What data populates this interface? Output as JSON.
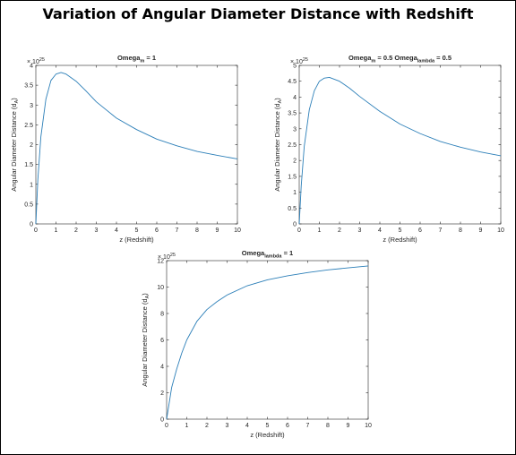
{
  "figure": {
    "title": "Variation of Angular Diameter Distance with Redshift"
  },
  "colors": {
    "line": "#2c7fb8",
    "axis": "#262626",
    "background": "#ffffff"
  },
  "chart_data": [
    {
      "type": "line",
      "title_base": "Omega",
      "title_sub": "m",
      "title_rest": " = 1",
      "xlabel": "z (Redshift)",
      "ylabel_base": "Angular Diameter Distance (d",
      "ylabel_sub": "A",
      "ylabel_end": ")",
      "exponent_base": "× 10",
      "exponent_power": "25",
      "xlim": [
        0,
        10
      ],
      "ylim": [
        0,
        4
      ],
      "xticks": [
        0,
        1,
        2,
        3,
        4,
        5,
        6,
        7,
        8,
        9,
        10
      ],
      "yticks": [
        0,
        0.5,
        1,
        1.5,
        2,
        2.5,
        3,
        3.5,
        4
      ],
      "ytick_labels": [
        "0",
        "0.5",
        "1",
        "1.5",
        "2",
        "2.5",
        "3",
        "3.5",
        "4"
      ],
      "grid": false,
      "series": [
        {
          "x": [
            0,
            0.1,
            0.25,
            0.5,
            0.75,
            1,
            1.25,
            1.5,
            2,
            2.5,
            3,
            4,
            5,
            6,
            7,
            8,
            9,
            10
          ],
          "y": [
            0,
            1.12,
            2.2,
            3.15,
            3.62,
            3.78,
            3.82,
            3.78,
            3.6,
            3.35,
            3.08,
            2.67,
            2.38,
            2.14,
            1.97,
            1.83,
            1.73,
            1.64
          ]
        }
      ]
    },
    {
      "type": "line",
      "title_base": "Omega",
      "title_sub": "m",
      "title_rest": " = 0.5   Omega",
      "title_sub2": "lambda",
      "title_rest2": " = 0.5",
      "xlabel": "z (Redshift)",
      "ylabel_base": "Angular Diameter Distance (d",
      "ylabel_sub": "A",
      "ylabel_end": ")",
      "exponent_base": "× 10",
      "exponent_power": "25",
      "xlim": [
        0,
        10
      ],
      "ylim": [
        0,
        5
      ],
      "xticks": [
        0,
        1,
        2,
        3,
        4,
        5,
        6,
        7,
        8,
        9,
        10
      ],
      "yticks": [
        0,
        0.5,
        1,
        1.5,
        2,
        2.5,
        3,
        3.5,
        4,
        4.5,
        5
      ],
      "ytick_labels": [
        "0",
        "0.5",
        "1",
        "1.5",
        "2",
        "2.5",
        "3",
        "3.5",
        "4",
        "4.5",
        "5"
      ],
      "grid": false,
      "series": [
        {
          "x": [
            0,
            0.1,
            0.25,
            0.5,
            0.75,
            1,
            1.25,
            1.5,
            2,
            2.5,
            3,
            4,
            5,
            6,
            7,
            8,
            9,
            10
          ],
          "y": [
            0,
            1.2,
            2.45,
            3.6,
            4.2,
            4.5,
            4.6,
            4.62,
            4.5,
            4.28,
            4.02,
            3.55,
            3.15,
            2.85,
            2.6,
            2.42,
            2.27,
            2.15
          ]
        }
      ]
    },
    {
      "type": "line",
      "title_base": "Omega",
      "title_sub": "lambda",
      "title_rest": " = 1",
      "xlabel": "z (Redshift)",
      "ylabel_base": "Angular Diameter Distance (d",
      "ylabel_sub": "A",
      "ylabel_end": ")",
      "exponent_base": "× 10",
      "exponent_power": "25",
      "xlim": [
        0,
        10
      ],
      "ylim": [
        0,
        12
      ],
      "xticks": [
        0,
        1,
        2,
        3,
        4,
        5,
        6,
        7,
        8,
        9,
        10
      ],
      "yticks": [
        0,
        2,
        4,
        6,
        8,
        10,
        12
      ],
      "ytick_labels": [
        "0",
        "2",
        "4",
        "6",
        "8",
        "10",
        "12"
      ],
      "grid": false,
      "series": [
        {
          "x": [
            0,
            0.25,
            0.5,
            0.75,
            1,
            1.5,
            2,
            2.5,
            3,
            4,
            5,
            6,
            7,
            8,
            9,
            10
          ],
          "y": [
            0,
            2.4,
            3.8,
            5.0,
            6.0,
            7.4,
            8.3,
            8.9,
            9.4,
            10.1,
            10.55,
            10.85,
            11.1,
            11.3,
            11.45,
            11.6
          ]
        }
      ]
    }
  ]
}
